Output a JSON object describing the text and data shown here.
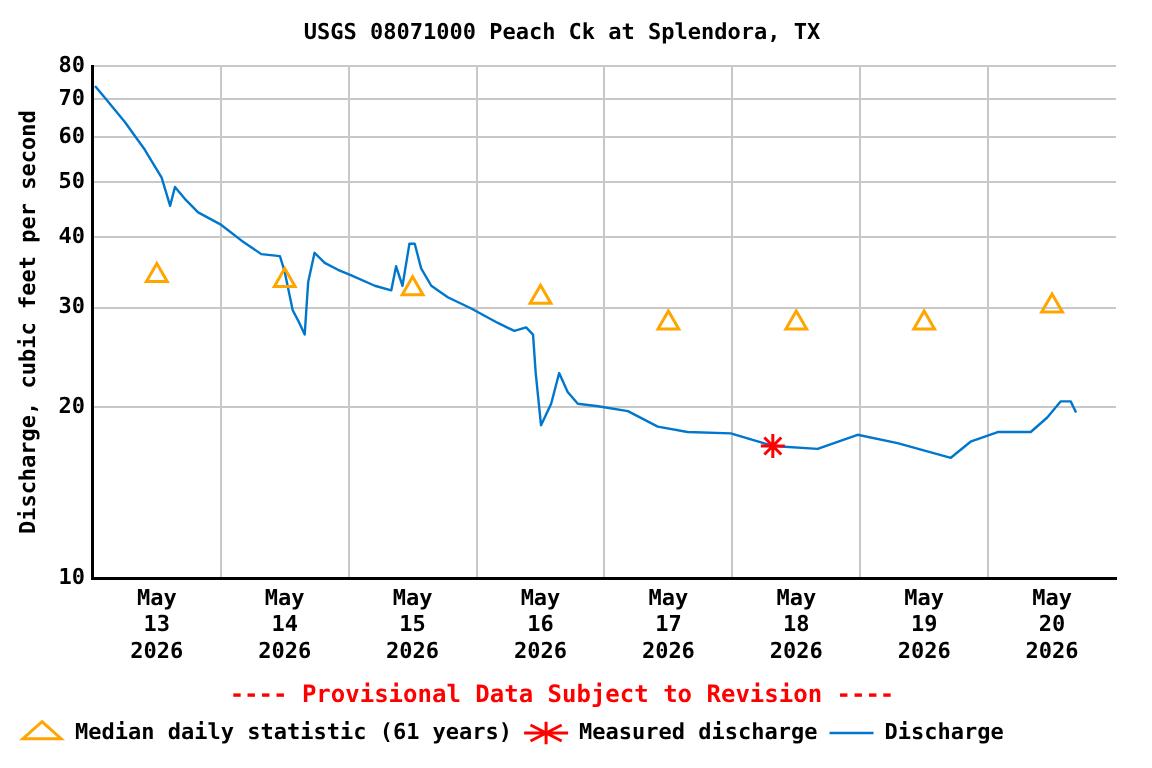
{
  "chart_data": {
    "type": "line",
    "title": "USGS 08071000 Peach Ck at Splendora, TX",
    "ylabel": "Discharge, cubic feet per second",
    "annotations": [
      "---- Provisional Data Subject to Revision ----"
    ],
    "xlim": [
      "2026-05-13T00:00",
      "2026-05-21T00:00"
    ],
    "xticks": [
      {
        "value": "2026-05-13T12:00",
        "label": "May 13 2026"
      },
      {
        "value": "2026-05-14T00:00",
        "label": null
      },
      {
        "value": "2026-05-14T12:00",
        "label": "May 14 2026"
      },
      {
        "value": "2026-05-15T00:00",
        "label": null
      },
      {
        "value": "2026-05-15T12:00",
        "label": "May 15 2026"
      },
      {
        "value": "2026-05-16T00:00",
        "label": null
      },
      {
        "value": "2026-05-16T12:00",
        "label": "May 16 2026"
      },
      {
        "value": "2026-05-17T00:00",
        "label": null
      },
      {
        "value": "2026-05-17T12:00",
        "label": "May 17 2026"
      },
      {
        "value": "2026-05-18T00:00",
        "label": null
      },
      {
        "value": "2026-05-18T12:00",
        "label": "May 18 2026"
      },
      {
        "value": "2026-05-19T00:00",
        "label": null
      },
      {
        "value": "2026-05-19T12:00",
        "label": "May 19 2026"
      },
      {
        "value": "2026-05-20T00:00",
        "label": null
      },
      {
        "value": "2026-05-20T12:00",
        "label": "May 20 2026"
      }
    ],
    "ylim": [
      10,
      80
    ],
    "yticks": [
      10,
      20,
      30,
      40,
      50,
      60,
      70,
      80
    ],
    "log": "y",
    "grid": true,
    "legend": "bottom",
    "series": [
      {
        "name": "Median daily statistic (61 years)",
        "type": "scatter",
        "marker": "triangle",
        "color": "#ffa500",
        "x": [
          "2026-05-13T12:00",
          "2026-05-14T12:00",
          "2026-05-15T12:00",
          "2026-05-16T12:00",
          "2026-05-17T12:00",
          "2026-05-18T12:00",
          "2026-05-19T12:00",
          "2026-05-20T12:00"
        ],
        "values": [
          34.2,
          33.5,
          32.4,
          31.3,
          28.2,
          28.2,
          28.2,
          30.2
        ]
      },
      {
        "name": "Measured discharge",
        "type": "scatter",
        "marker": "cross",
        "color": "#ff0000",
        "x": [
          "2026-05-18T07:36"
        ],
        "values": [
          17.1
        ]
      },
      {
        "name": "Discharge",
        "type": "line",
        "marker": "none",
        "color": "#0077cc",
        "x": [
          "2026-05-13T00:24",
          "2026-05-13T02:15",
          "2026-05-13T06:00",
          "2026-05-13T09:45",
          "2026-05-13T12:54",
          "2026-05-13T14:30",
          "2026-05-13T15:24",
          "2026-05-13T17:15",
          "2026-05-13T19:45",
          "2026-05-14T00:06",
          "2026-05-14T03:54",
          "2026-05-14T07:36",
          "2026-05-14T11:06",
          "2026-05-14T12:00",
          "2026-05-14T13:30",
          "2026-05-14T14:30",
          "2026-05-14T15:45",
          "2026-05-14T16:24",
          "2026-05-14T17:36",
          "2026-05-14T19:30",
          "2026-05-14T22:00",
          "2026-05-15T00:30",
          "2026-05-15T04:54",
          "2026-05-15T08:00",
          "2026-05-15T08:54",
          "2026-05-15T10:06",
          "2026-05-15T11:24",
          "2026-05-15T12:24",
          "2026-05-15T13:36",
          "2026-05-15T15:30",
          "2026-05-15T18:36",
          "2026-05-15T23:00",
          "2026-05-16T04:00",
          "2026-05-16T07:06",
          "2026-05-16T09:18",
          "2026-05-16T10:36",
          "2026-05-16T11:06",
          "2026-05-16T12:06",
          "2026-05-16T14:00",
          "2026-05-16T15:30",
          "2026-05-16T17:06",
          "2026-05-16T19:00",
          "2026-05-16T22:48",
          "2026-05-17T04:24",
          "2026-05-17T10:00",
          "2026-05-17T15:36",
          "2026-05-17T23:42",
          "2026-05-18T07:36",
          "2026-05-18T16:00",
          "2026-05-18T23:30",
          "2026-05-19T07:00",
          "2026-05-19T17:00",
          "2026-05-19T20:42",
          "2026-05-20T01:48",
          "2026-05-20T08:00",
          "2026-05-20T11:06",
          "2026-05-20T13:36",
          "2026-05-20T15:30",
          "2026-05-20T16:30"
        ],
        "values": [
          73.9,
          70.4,
          63.8,
          57,
          50.9,
          45.4,
          49,
          46.7,
          44.2,
          42,
          39.4,
          37.3,
          37,
          34.7,
          29.7,
          28.5,
          26.9,
          33.3,
          37.5,
          36,
          35,
          34.2,
          32.8,
          32.2,
          35.5,
          32.8,
          38.9,
          38.9,
          35.2,
          32.8,
          31.3,
          29.9,
          28.2,
          27.3,
          27.7,
          26.9,
          23,
          18.6,
          20.3,
          23,
          21.3,
          20.3,
          20.1,
          19.7,
          18.5,
          18.1,
          18,
          17.1,
          16.9,
          17.9,
          17.3,
          16.3,
          17.4,
          18.1,
          18.1,
          19.2,
          20.5,
          20.5,
          19.6
        ]
      }
    ]
  }
}
